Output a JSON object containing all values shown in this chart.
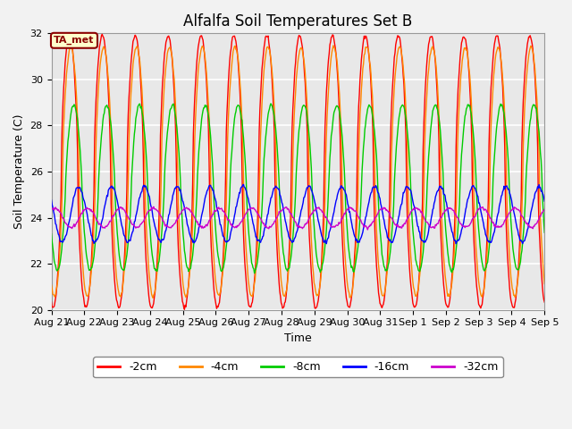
{
  "title": "Alfalfa Soil Temperatures Set B",
  "xlabel": "Time",
  "ylabel": "Soil Temperature (C)",
  "ylim": [
    20,
    32
  ],
  "yticks": [
    20,
    22,
    24,
    26,
    28,
    30,
    32
  ],
  "x_labels": [
    "Aug 21",
    "Aug 22",
    "Aug 23",
    "Aug 24",
    "Aug 25",
    "Aug 26",
    "Aug 27",
    "Aug 28",
    "Aug 29",
    "Aug 30",
    "Aug 31",
    "Sep 1",
    "Sep 2",
    "Sep 3",
    "Sep 4",
    "Sep 5"
  ],
  "legend_labels": [
    "-2cm",
    "-4cm",
    "-8cm",
    "-16cm",
    "-32cm"
  ],
  "annotation_text": "TA_met",
  "annotation_color": "#8B0000",
  "annotation_bg": "#FFFFCC",
  "background_color": "#E8E8E8",
  "grid_color": "#FFFFFF",
  "title_fontsize": 12,
  "axis_label_fontsize": 9,
  "tick_fontsize": 8,
  "n_days": 15,
  "points_per_day": 48
}
